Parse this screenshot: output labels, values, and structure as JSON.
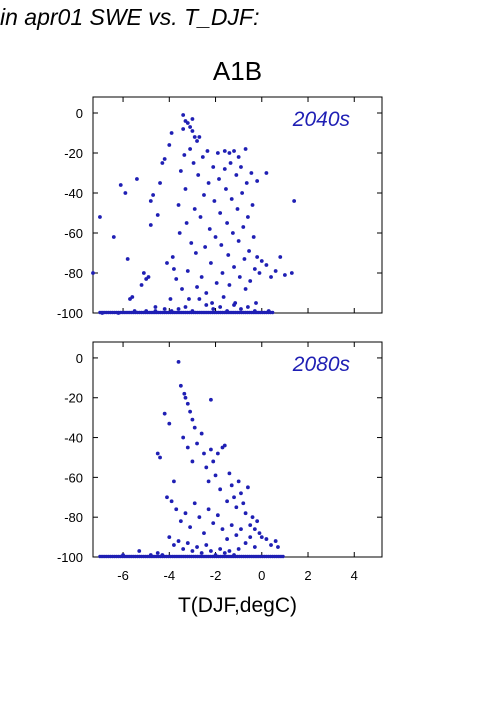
{
  "header": {
    "title": "in apr01 SWE vs. T_DJF:"
  },
  "scenario_label": "A1B",
  "xlabel": "T(DJF,degC)",
  "colors": {
    "points": "#1f1fb4",
    "axes": "#000000"
  },
  "chart_data": [
    {
      "type": "scatter",
      "panel_label": "2040s",
      "xlim": [
        -7.3,
        5.2
      ],
      "ylim": [
        -100,
        8
      ],
      "x_ticks": [
        "-6",
        "-4",
        "-2",
        "0",
        "2",
        "4"
      ],
      "x_tick_values": [
        -6,
        -4,
        -2,
        0,
        2,
        4
      ],
      "y_ticks": [
        "0",
        "-20",
        "-40",
        "-60",
        "-80",
        "-100"
      ],
      "y_tick_values": [
        0,
        -20,
        -40,
        -60,
        -80,
        -100
      ],
      "grid": false,
      "points": [
        [
          -7.3,
          -80
        ],
        [
          -7.0,
          -52
        ],
        [
          -6.4,
          -62
        ],
        [
          -6.1,
          -36
        ],
        [
          -5.9,
          -40
        ],
        [
          -6.2,
          -100
        ],
        [
          -6.9,
          -100
        ],
        [
          -5.8,
          -73
        ],
        [
          -5.7,
          -93
        ],
        [
          -5.6,
          -92
        ],
        [
          -5.4,
          -33
        ],
        [
          -5.2,
          -86
        ],
        [
          -5.1,
          -80
        ],
        [
          -5.0,
          -83
        ],
        [
          -4.9,
          -82
        ],
        [
          -4.8,
          -56
        ],
        [
          -4.8,
          -44
        ],
        [
          -4.7,
          -41
        ],
        [
          -4.6,
          -97
        ],
        [
          -4.5,
          -51
        ],
        [
          -4.4,
          -35
        ],
        [
          -4.3,
          -25
        ],
        [
          -4.2,
          -23
        ],
        [
          -4.1,
          -75
        ],
        [
          -4.0,
          -16
        ],
        [
          -3.95,
          -93
        ],
        [
          -3.9,
          -10
        ],
        [
          -3.85,
          -72
        ],
        [
          -3.8,
          -78
        ],
        [
          -3.7,
          -83
        ],
        [
          -3.6,
          -46
        ],
        [
          -3.55,
          -60
        ],
        [
          -3.5,
          -29
        ],
        [
          -3.45,
          -88
        ],
        [
          -3.4,
          -8
        ],
        [
          -3.35,
          -21
        ],
        [
          -3.3,
          -38
        ],
        [
          -3.25,
          -55
        ],
        [
          -3.2,
          -79
        ],
        [
          -3.15,
          -93
        ],
        [
          -3.1,
          -18
        ],
        [
          -3.05,
          -65
        ],
        [
          -3.0,
          -3
        ],
        [
          -2.95,
          -25
        ],
        [
          -2.9,
          -48
        ],
        [
          -2.85,
          -70
        ],
        [
          -2.8,
          -87
        ],
        [
          -2.75,
          -31
        ],
        [
          -2.7,
          -12
        ],
        [
          -2.65,
          -52
        ],
        [
          -2.6,
          -82
        ],
        [
          -2.55,
          -22
        ],
        [
          -2.5,
          -41
        ],
        [
          -2.45,
          -67
        ],
        [
          -2.4,
          -90
        ],
        [
          -2.35,
          -19
        ],
        [
          -2.3,
          -35
        ],
        [
          -2.25,
          -58
        ],
        [
          -2.2,
          -75
        ],
        [
          -2.15,
          -95
        ],
        [
          -2.1,
          -27
        ],
        [
          -2.05,
          -44
        ],
        [
          -2.0,
          -62
        ],
        [
          -1.95,
          -85
        ],
        [
          -1.9,
          -20
        ],
        [
          -1.85,
          -33
        ],
        [
          -1.8,
          -50
        ],
        [
          -1.75,
          -66
        ],
        [
          -1.7,
          -80
        ],
        [
          -1.65,
          -92
        ],
        [
          -1.6,
          -28
        ],
        [
          -1.55,
          -38
        ],
        [
          -1.5,
          -55
        ],
        [
          -1.45,
          -71
        ],
        [
          -1.4,
          -86
        ],
        [
          -1.35,
          -25
        ],
        [
          -1.3,
          -43
        ],
        [
          -1.25,
          -60
        ],
        [
          -1.2,
          -77
        ],
        [
          -1.15,
          -95
        ],
        [
          -1.1,
          -31
        ],
        [
          -1.05,
          -48
        ],
        [
          -1.0,
          -64
        ],
        [
          -0.95,
          -82
        ],
        [
          -0.9,
          -27
        ],
        [
          -0.85,
          -40
        ],
        [
          -0.8,
          -57
        ],
        [
          -0.75,
          -73
        ],
        [
          -0.7,
          -88
        ],
        [
          -0.65,
          -35
        ],
        [
          -0.6,
          -52
        ],
        [
          -0.55,
          -69
        ],
        [
          -0.5,
          -84
        ],
        [
          -0.45,
          -30
        ],
        [
          -0.4,
          -46
        ],
        [
          -0.35,
          -62
        ],
        [
          -0.3,
          -78
        ],
        [
          -0.25,
          -95
        ],
        [
          -0.2,
          -72
        ],
        [
          -0.1,
          -80
        ],
        [
          0.0,
          -74
        ],
        [
          0.2,
          -76
        ],
        [
          0.4,
          -82
        ],
        [
          0.6,
          -79
        ],
        [
          0.8,
          -72
        ],
        [
          1.0,
          -81
        ],
        [
          1.3,
          -80
        ],
        [
          1.4,
          -44
        ],
        [
          -0.2,
          -34
        ],
        [
          0.2,
          -30
        ],
        [
          -1.0,
          -22
        ],
        [
          -0.7,
          -18
        ],
        [
          -3.4,
          -1
        ],
        [
          -3.2,
          -5
        ],
        [
          -3.1,
          -7
        ],
        [
          -3.0,
          -9
        ],
        [
          -2.9,
          -12
        ],
        [
          -2.8,
          -14
        ],
        [
          -3.3,
          -4
        ],
        [
          -1.6,
          -19
        ],
        [
          -1.4,
          -20
        ],
        [
          -1.2,
          -19
        ],
        [
          -2.7,
          -93
        ],
        [
          -2.4,
          -96
        ],
        [
          -2.1,
          -98
        ],
        [
          -1.8,
          -97
        ],
        [
          -1.5,
          -99
        ],
        [
          -1.2,
          -96
        ],
        [
          -0.9,
          -98
        ],
        [
          -0.6,
          -97
        ],
        [
          -0.3,
          -99
        ],
        [
          0.3,
          -99
        ],
        [
          -4.2,
          -98
        ],
        [
          -3.9,
          -99
        ],
        [
          -3.6,
          -98
        ],
        [
          -3.3,
          -97
        ],
        [
          -3.0,
          -99
        ],
        [
          -5.0,
          -99
        ],
        [
          -4.6,
          -99
        ],
        [
          -5.5,
          -99
        ]
      ],
      "baseline_cluster": {
        "y": -100,
        "x_from": -7.0,
        "x_to": 0.5
      }
    },
    {
      "type": "scatter",
      "panel_label": "2080s",
      "xlim": [
        -7.3,
        5.2
      ],
      "ylim": [
        -100,
        8
      ],
      "x_ticks": [
        "-6",
        "-4",
        "-2",
        "0",
        "2",
        "4"
      ],
      "x_tick_values": [
        -6,
        -4,
        -2,
        0,
        2,
        4
      ],
      "y_ticks": [
        "0",
        "-20",
        "-40",
        "-60",
        "-80",
        "-100"
      ],
      "y_tick_values": [
        0,
        -20,
        -40,
        -60,
        -80,
        -100
      ],
      "grid": false,
      "points": [
        [
          -3.6,
          -2
        ],
        [
          -3.5,
          -14
        ],
        [
          -4.2,
          -28
        ],
        [
          -4.5,
          -48
        ],
        [
          -4.4,
          -50
        ],
        [
          -4.0,
          -33
        ],
        [
          -3.3,
          -20
        ],
        [
          -3.2,
          -23
        ],
        [
          -3.1,
          -27
        ],
        [
          -3.0,
          -31
        ],
        [
          -2.9,
          -35
        ],
        [
          -3.35,
          -18
        ],
        [
          -2.2,
          -21
        ],
        [
          -3.4,
          -40
        ],
        [
          -3.2,
          -45
        ],
        [
          -3.0,
          -52
        ],
        [
          -2.8,
          -43
        ],
        [
          -2.6,
          -38
        ],
        [
          -2.5,
          -48
        ],
        [
          -2.4,
          -55
        ],
        [
          -2.3,
          -62
        ],
        [
          -2.2,
          -46
        ],
        [
          -2.1,
          -52
        ],
        [
          -2.0,
          -59
        ],
        [
          -1.9,
          -48
        ],
        [
          -1.8,
          -66
        ],
        [
          -1.7,
          -45
        ],
        [
          -1.6,
          -44
        ],
        [
          -1.5,
          -72
        ],
        [
          -1.4,
          -58
        ],
        [
          -1.3,
          -64
        ],
        [
          -1.2,
          -70
        ],
        [
          -1.1,
          -75
        ],
        [
          -1.0,
          -62
        ],
        [
          -0.9,
          -68
        ],
        [
          -0.8,
          -73
        ],
        [
          -0.7,
          -78
        ],
        [
          -0.6,
          -65
        ],
        [
          -0.5,
          -84
        ],
        [
          -0.4,
          -80
        ],
        [
          -0.3,
          -86
        ],
        [
          -0.2,
          -82
        ],
        [
          -0.1,
          -88
        ],
        [
          0.0,
          -90
        ],
        [
          0.2,
          -91
        ],
        [
          0.4,
          -94
        ],
        [
          0.6,
          -92
        ],
        [
          0.7,
          -95
        ],
        [
          -3.8,
          -62
        ],
        [
          -3.9,
          -72
        ],
        [
          -4.1,
          -70
        ],
        [
          -3.7,
          -76
        ],
        [
          -3.5,
          -82
        ],
        [
          -3.3,
          -78
        ],
        [
          -3.1,
          -85
        ],
        [
          -2.9,
          -73
        ],
        [
          -2.7,
          -80
        ],
        [
          -2.5,
          -88
        ],
        [
          -2.3,
          -76
        ],
        [
          -2.1,
          -83
        ],
        [
          -1.9,
          -79
        ],
        [
          -1.7,
          -86
        ],
        [
          -1.5,
          -91
        ],
        [
          -1.3,
          -84
        ],
        [
          -1.1,
          -89
        ],
        [
          -0.9,
          -86
        ],
        [
          -0.7,
          -93
        ],
        [
          -0.5,
          -90
        ],
        [
          -0.3,
          -95
        ],
        [
          -4.0,
          -90
        ],
        [
          -3.8,
          -94
        ],
        [
          -3.6,
          -92
        ],
        [
          -3.4,
          -96
        ],
        [
          -3.2,
          -93
        ],
        [
          -3.0,
          -97
        ],
        [
          -2.8,
          -95
        ],
        [
          -2.6,
          -98
        ],
        [
          -2.4,
          -94
        ],
        [
          -2.2,
          -97
        ],
        [
          -2.0,
          -99
        ],
        [
          -1.8,
          -96
        ],
        [
          -1.6,
          -98
        ],
        [
          -1.4,
          -97
        ],
        [
          -1.2,
          -99
        ],
        [
          -1.0,
          -96
        ],
        [
          -4.5,
          -98
        ],
        [
          -5.3,
          -97
        ],
        [
          -6.0,
          -99
        ],
        [
          -4.8,
          -99
        ],
        [
          -4.3,
          -99
        ]
      ],
      "baseline_cluster": {
        "y": -100,
        "x_from": -7.0,
        "x_to": 1.0
      }
    }
  ]
}
